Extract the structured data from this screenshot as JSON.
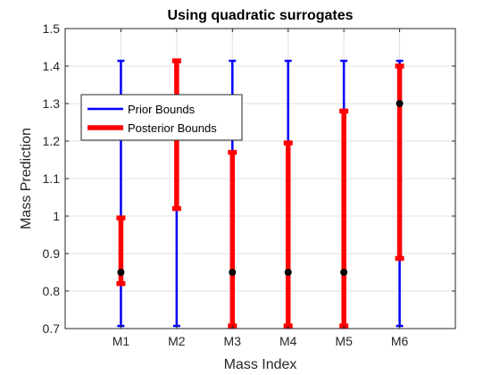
{
  "chart_data": {
    "type": "errorbar",
    "title": "Using quadratic surrogates",
    "xlabel": "Mass Index",
    "ylabel": "Mass Prediction",
    "categories": [
      "M1",
      "M2",
      "M3",
      "M4",
      "M5",
      "M6"
    ],
    "xlim": [
      0,
      7
    ],
    "ylim": [
      0.7,
      1.5
    ],
    "y_ticks": [
      "0.7",
      "0.8",
      "0.9",
      "1",
      "1.1",
      "1.2",
      "1.3",
      "1.4",
      "1.5"
    ],
    "grid": true,
    "legend_placement": "upper-left",
    "series": [
      {
        "name": "Prior Bounds",
        "color": "#0000ff",
        "lower": [
          0.707,
          0.707,
          0.707,
          0.707,
          0.707,
          0.707
        ],
        "upper": [
          1.414,
          1.414,
          1.414,
          1.414,
          1.414,
          1.414
        ]
      },
      {
        "name": "Posterior Bounds",
        "color": "#ff0000",
        "lower": [
          0.82,
          1.02,
          0.707,
          0.707,
          0.707,
          0.887
        ],
        "upper": [
          0.995,
          1.414,
          1.17,
          1.195,
          1.28,
          1.4
        ]
      }
    ],
    "point_estimates": {
      "color": "#000000",
      "values": [
        0.85,
        null,
        0.85,
        0.85,
        0.85,
        1.3
      ]
    }
  }
}
